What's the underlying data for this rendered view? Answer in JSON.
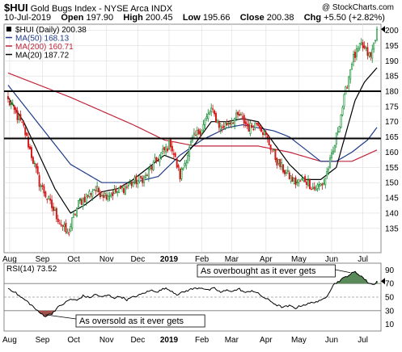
{
  "header": {
    "symbol": "$HUI",
    "name": "Gold Bugs Index - NYSE Arca  INDX",
    "copyright": "@ StockCharts.com",
    "date": "10-Jul-2019",
    "open_label": "Open",
    "open": "197.90",
    "high_label": "High",
    "high": "200.45",
    "low_label": "Low",
    "low": "195.66",
    "close_label": "Close",
    "close": "200.38",
    "chg_label": "Chg",
    "chg": "+5.50 (+2.82%)"
  },
  "legend": [
    {
      "label": "$HUI (Daily) 200.38",
      "color": "#000000",
      "marker": "square"
    },
    {
      "label": "MA(50) 168.13",
      "color": "#1f3a8a",
      "marker": "line"
    },
    {
      "label": "MA(200) 160.71",
      "color": "#c0263a",
      "marker": "line"
    },
    {
      "label": "MA(20) 187.72",
      "color": "#000000",
      "marker": "line"
    }
  ],
  "rsi_label": "RSI(14) 73.52",
  "annotations": {
    "overbought": "As overbought as it ever gets",
    "oversold": "As oversold as it ever gets"
  },
  "colors": {
    "up": "#0a8a2a",
    "down": "#d01c1c",
    "ma50": "#1f3a8a",
    "ma200": "#c0263a",
    "ma20": "#000000",
    "rsi_fill": "#5a8a5a",
    "rsi_oversold_fill": "#a0524a",
    "grid": "#dddddd"
  },
  "chart_data": [
    {
      "type": "candlestick",
      "title": "$HUI (Daily)",
      "x_tick_labels": [
        "Aug",
        "Sep",
        "Oct",
        "Nov",
        "Dec",
        "2019",
        "Feb",
        "Mar",
        "Apr",
        "May",
        "Jun",
        "Jul"
      ],
      "x_tick_positions": [
        1,
        22,
        42,
        63,
        83,
        103,
        124,
        143,
        165,
        186,
        207,
        227
      ],
      "ylim": [
        127,
        202
      ],
      "y_ticks": [
        135,
        140,
        145,
        150,
        155,
        160,
        165,
        170,
        175,
        180,
        185,
        190,
        195,
        200
      ],
      "horizontal_lines": [
        180,
        164.5
      ],
      "anchors": [
        [
          0,
          177
        ],
        [
          10,
          168
        ],
        [
          20,
          150
        ],
        [
          30,
          140
        ],
        [
          38,
          133
        ],
        [
          45,
          143
        ],
        [
          55,
          148
        ],
        [
          62,
          146
        ],
        [
          70,
          147
        ],
        [
          80,
          150
        ],
        [
          88,
          152
        ],
        [
          96,
          158
        ],
        [
          104,
          163
        ],
        [
          110,
          152
        ],
        [
          118,
          164
        ],
        [
          124,
          168
        ],
        [
          130,
          174
        ],
        [
          136,
          168
        ],
        [
          142,
          170
        ],
        [
          148,
          172
        ],
        [
          154,
          168
        ],
        [
          160,
          170
        ],
        [
          166,
          164
        ],
        [
          172,
          157
        ],
        [
          178,
          153
        ],
        [
          184,
          150
        ],
        [
          190,
          151
        ],
        [
          196,
          148
        ],
        [
          202,
          150
        ],
        [
          208,
          160
        ],
        [
          214,
          175
        ],
        [
          220,
          190
        ],
        [
          226,
          195
        ],
        [
          232,
          191
        ],
        [
          236,
          200.38
        ]
      ],
      "ma50_anchors": [
        [
          0,
          182
        ],
        [
          20,
          169
        ],
        [
          40,
          156
        ],
        [
          60,
          150
        ],
        [
          80,
          150
        ],
        [
          96,
          152
        ],
        [
          110,
          159
        ],
        [
          124,
          164
        ],
        [
          140,
          168
        ],
        [
          150,
          169
        ],
        [
          160,
          168
        ],
        [
          170,
          167
        ],
        [
          180,
          165
        ],
        [
          190,
          161
        ],
        [
          200,
          157
        ],
        [
          210,
          157
        ],
        [
          220,
          160
        ],
        [
          230,
          164
        ],
        [
          236,
          168.13
        ]
      ],
      "ma200_anchors": [
        [
          0,
          186
        ],
        [
          40,
          178
        ],
        [
          80,
          169
        ],
        [
          100,
          164
        ],
        [
          120,
          162
        ],
        [
          140,
          162
        ],
        [
          160,
          162
        ],
        [
          180,
          160
        ],
        [
          200,
          157
        ],
        [
          220,
          157
        ],
        [
          236,
          160.71
        ]
      ],
      "ma20_anchors": [
        [
          0,
          178
        ],
        [
          10,
          170
        ],
        [
          20,
          159
        ],
        [
          30,
          148
        ],
        [
          40,
          140
        ],
        [
          50,
          143
        ],
        [
          60,
          147
        ],
        [
          70,
          148
        ],
        [
          80,
          151
        ],
        [
          90,
          155
        ],
        [
          100,
          159
        ],
        [
          110,
          157
        ],
        [
          120,
          163
        ],
        [
          130,
          170
        ],
        [
          140,
          170
        ],
        [
          150,
          171
        ],
        [
          160,
          170
        ],
        [
          170,
          163
        ],
        [
          180,
          156
        ],
        [
          190,
          151
        ],
        [
          200,
          151
        ],
        [
          210,
          155
        ],
        [
          216,
          166
        ],
        [
          222,
          177
        ],
        [
          228,
          183
        ],
        [
          236,
          187.72
        ]
      ],
      "last_close": 200.38
    },
    {
      "type": "line",
      "title": "RSI(14)",
      "ylim": [
        0,
        100
      ],
      "y_ticks": [
        10,
        30,
        50,
        70,
        90
      ],
      "reference_lines": [
        70,
        50,
        30
      ],
      "anchors": [
        [
          0,
          63
        ],
        [
          4,
          58
        ],
        [
          8,
          50
        ],
        [
          12,
          44
        ],
        [
          16,
          36
        ],
        [
          20,
          27
        ],
        [
          24,
          22
        ],
        [
          28,
          26
        ],
        [
          32,
          35
        ],
        [
          36,
          41
        ],
        [
          40,
          47
        ],
        [
          44,
          45
        ],
        [
          48,
          52
        ],
        [
          52,
          49
        ],
        [
          56,
          54
        ],
        [
          60,
          50
        ],
        [
          64,
          53
        ],
        [
          68,
          49
        ],
        [
          72,
          51
        ],
        [
          76,
          46
        ],
        [
          80,
          50
        ],
        [
          84,
          53
        ],
        [
          88,
          57
        ],
        [
          92,
          60
        ],
        [
          96,
          58
        ],
        [
          100,
          63
        ],
        [
          104,
          60
        ],
        [
          108,
          54
        ],
        [
          112,
          57
        ],
        [
          116,
          61
        ],
        [
          120,
          63
        ],
        [
          124,
          64
        ],
        [
          128,
          60
        ],
        [
          132,
          63
        ],
        [
          136,
          57
        ],
        [
          140,
          60
        ],
        [
          144,
          59
        ],
        [
          148,
          62
        ],
        [
          152,
          56
        ],
        [
          156,
          60
        ],
        [
          160,
          55
        ],
        [
          164,
          49
        ],
        [
          168,
          44
        ],
        [
          172,
          38
        ],
        [
          176,
          35
        ],
        [
          180,
          37
        ],
        [
          184,
          34
        ],
        [
          188,
          38
        ],
        [
          192,
          40
        ],
        [
          196,
          43
        ],
        [
          200,
          44
        ],
        [
          204,
          52
        ],
        [
          208,
          68
        ],
        [
          212,
          74
        ],
        [
          216,
          80
        ],
        [
          220,
          85
        ],
        [
          222,
          87
        ],
        [
          226,
          81
        ],
        [
          230,
          72
        ],
        [
          234,
          68
        ],
        [
          236,
          73.52
        ]
      ],
      "last_value": 73.52
    }
  ]
}
